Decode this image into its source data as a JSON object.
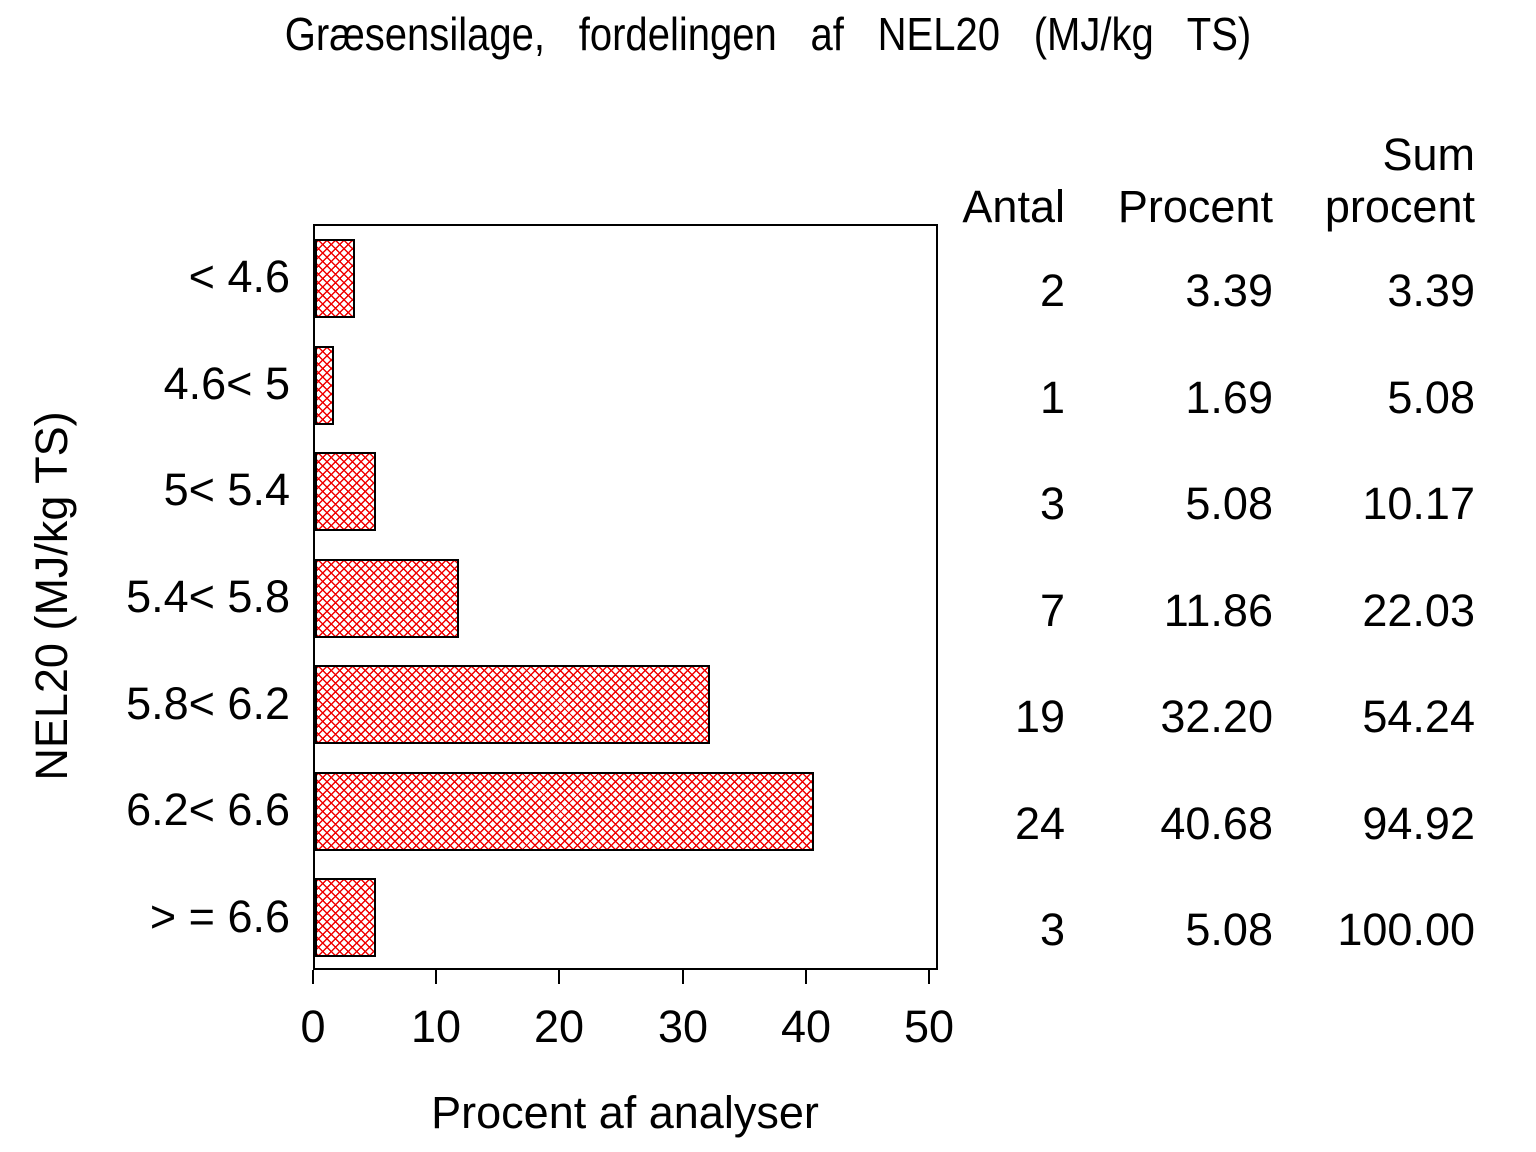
{
  "title": "Græsensilage, fordelingen af NEL20 (MJ/kg TS)",
  "chart_data": {
    "type": "bar",
    "orientation": "horizontal",
    "title": "Græsensilage, fordelingen af NEL20 (MJ/kg TS)",
    "categories": [
      "< 4.6",
      "4.6< 5",
      "5< 5.4",
      "5.4< 5.8",
      "5.8< 6.2",
      "6.2< 6.6",
      "> = 6.6"
    ],
    "series": [
      {
        "name": "Procent af analyser",
        "values": [
          3.39,
          1.69,
          5.08,
          11.86,
          32.2,
          40.68,
          5.08
        ]
      }
    ],
    "counts": [
      2,
      1,
      3,
      7,
      19,
      24,
      3
    ],
    "cum_percent": [
      3.39,
      5.08,
      10.17,
      22.03,
      54.24,
      94.92,
      100.0
    ],
    "xlabel": "Procent af analyser",
    "ylabel": "NEL20 (MJ/kg TS)",
    "xlim": [
      0,
      50
    ],
    "xticks": [
      "0",
      "10",
      "20",
      "30",
      "40",
      "50"
    ],
    "grid": false,
    "legend": "none",
    "bar_style": {
      "hatch": "diagonal-crosshatch",
      "hatch_color": "#f00000",
      "border_color": "#000000",
      "background": "#ffffff"
    }
  },
  "table": {
    "headers": {
      "antal": "Antal",
      "procent": "Procent",
      "sum_line1": "Sum",
      "sum_line2": "procent"
    },
    "rows": [
      {
        "antal": "2",
        "procent": "3.39",
        "sum": "3.39"
      },
      {
        "antal": "1",
        "procent": "1.69",
        "sum": "5.08"
      },
      {
        "antal": "3",
        "procent": "5.08",
        "sum": "10.17"
      },
      {
        "antal": "7",
        "procent": "11.86",
        "sum": "22.03"
      },
      {
        "antal": "19",
        "procent": "32.20",
        "sum": "54.24"
      },
      {
        "antal": "24",
        "procent": "40.68",
        "sum": "94.92"
      },
      {
        "antal": "3",
        "procent": "5.08",
        "sum": "100.00"
      }
    ]
  }
}
